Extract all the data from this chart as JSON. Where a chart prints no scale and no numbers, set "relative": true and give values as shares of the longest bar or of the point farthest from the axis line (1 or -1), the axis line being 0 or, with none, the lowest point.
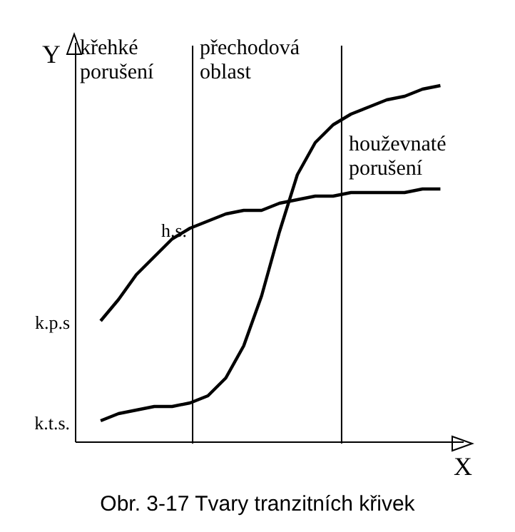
{
  "chart_data": {
    "type": "line",
    "relative": true,
    "xlabel": "X",
    "ylabel": "Y",
    "grid": false,
    "legend": false,
    "marker": "none",
    "line_style": "solid",
    "categories": [
      null,
      null,
      null,
      null,
      null,
      null,
      null,
      null,
      null,
      null,
      null,
      null,
      null,
      null,
      null,
      null,
      null,
      null,
      null,
      null
    ],
    "series": [
      {
        "color": "#000000",
        "values": [
          0.34,
          0.4,
          0.47,
          0.52,
          0.57,
          0.6,
          0.62,
          0.64,
          0.65,
          0.65,
          0.67,
          0.68,
          0.69,
          0.69,
          0.7,
          0.7,
          0.7,
          0.7,
          0.71,
          0.71
        ]
      },
      {
        "color": "#000000",
        "values": [
          0.06,
          0.08,
          0.09,
          0.1,
          0.1,
          0.11,
          0.13,
          0.18,
          0.27,
          0.41,
          0.59,
          0.75,
          0.84,
          0.89,
          0.92,
          0.94,
          0.96,
          0.97,
          0.99,
          1.0
        ]
      }
    ],
    "annotations": [
      "k.t.s.",
      "k.p.s",
      "h.s.",
      "křehké porušení",
      "přechodová oblast",
      "houževnaté porušení",
      "Obr. 3-17 Tvary tranzitních křivek"
    ]
  }
}
